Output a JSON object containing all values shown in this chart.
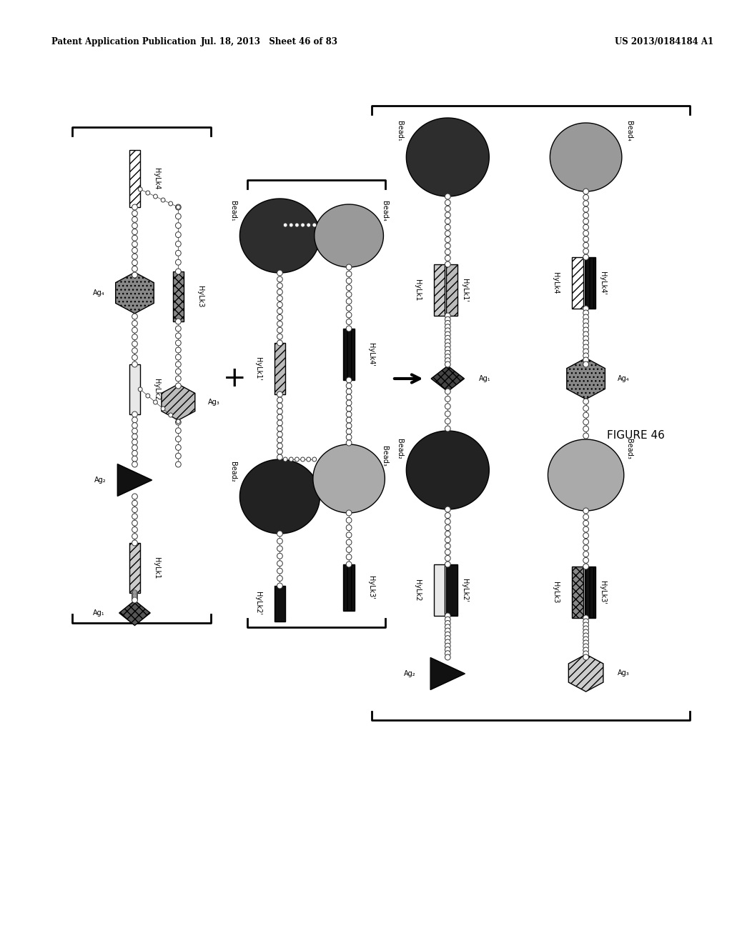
{
  "header_left": "Patent Application Publication",
  "header_mid": "Jul. 18, 2013  Sheet 46 of 83",
  "header_right": "US 2013/0184184 A1",
  "figure_label": "FIGURE 46",
  "bg_color": "#ffffff"
}
